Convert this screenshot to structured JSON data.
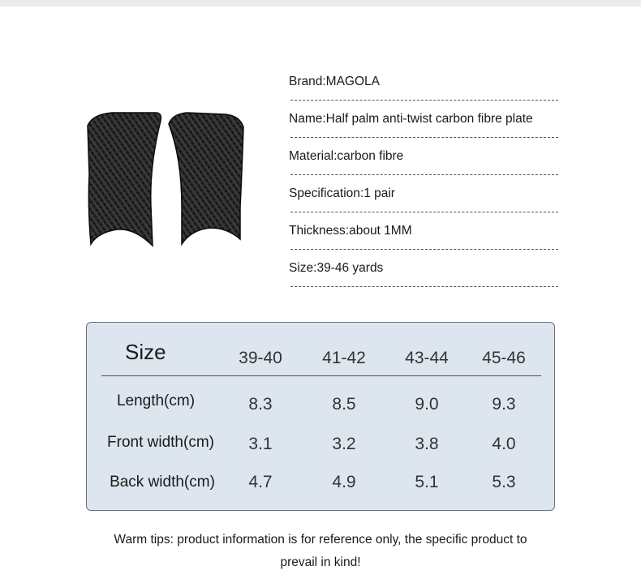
{
  "specs": [
    "Brand:MAGOLA",
    "Name:Half palm anti-twist carbon fibre plate",
    "Material:carbon fibre",
    "Specification:1 pair",
    "Thickness:about 1MM",
    "Size:39-46 yards"
  ],
  "size_table": {
    "title": "Size",
    "sizes": [
      "39-40",
      "41-42",
      "43-44",
      "45-46"
    ],
    "rows": [
      {
        "label": "Length(cm)",
        "values": [
          "8.3",
          "8.5",
          "9.0",
          "9.3"
        ]
      },
      {
        "label": "Front width(cm)",
        "values": [
          "3.1",
          "3.2",
          "3.8",
          "4.0"
        ]
      },
      {
        "label": "Back width(cm)",
        "values": [
          "4.7",
          "4.9",
          "5.1",
          "5.3"
        ]
      }
    ]
  },
  "tips": {
    "line1": "Warm tips: product information is for reference only, the specific product to",
    "line2": "prevail in kind!"
  },
  "colors": {
    "panel_bg": "#dde6ee",
    "plate": "#1c1c1c"
  }
}
